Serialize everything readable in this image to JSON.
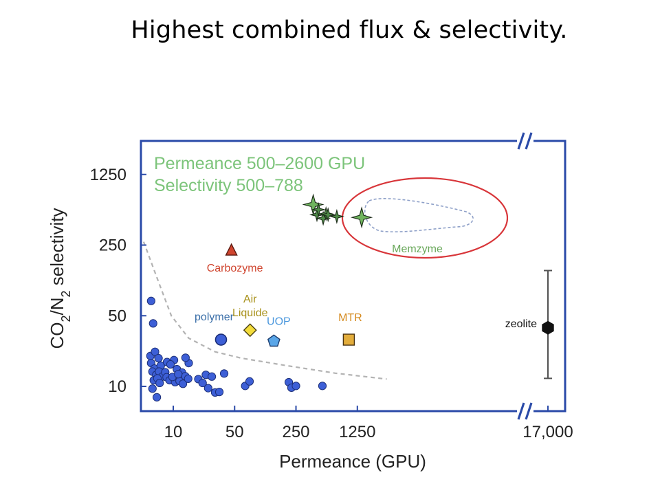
{
  "slide": {
    "title": "Highest combined flux & selectivity."
  },
  "colors": {
    "frame": "#2a4aa8",
    "polymer_points": "#3d5fd6",
    "carbozyme": "#d0452f",
    "air_liquide": "#f3dc3c",
    "air_liquide_label": "#a8911a",
    "uop": "#5aa6e8",
    "uop_label": "#4a97dd",
    "mtr": "#e3ad3c",
    "mtr_label": "#d58a1e",
    "memzyme": "#6aa85b",
    "memzyme_circle": "#d8363a",
    "note": "#7cc47a",
    "trend": "#b3b3b3",
    "zeolite": "#111111"
  },
  "chart_data": {
    "type": "scatter",
    "title": "",
    "xlabel": "Permeance (GPU)",
    "ylabel": "CO2/N2 selectivity",
    "x_scale": "log",
    "y_scale": "log",
    "x_break": true,
    "y_break": true,
    "x_ticks": [
      "10",
      "50",
      "250",
      "1250",
      "17,000"
    ],
    "y_ticks": [
      "1250",
      "250",
      "50",
      "10"
    ],
    "note_lines": [
      "Permeance 500–2600 GPU",
      "Selectivity 500–788"
    ],
    "polymer_points": [
      [
        5.6,
        70
      ],
      [
        5.8,
        9.5
      ],
      [
        6.5,
        7.8
      ],
      [
        5.5,
        20
      ],
      [
        5.9,
        42
      ],
      [
        6.2,
        22
      ],
      [
        5.6,
        17
      ],
      [
        6.1,
        15
      ],
      [
        6.8,
        19
      ],
      [
        7.2,
        16
      ],
      [
        5.8,
        14
      ],
      [
        6.4,
        13
      ],
      [
        6.9,
        14
      ],
      [
        7.5,
        12.5
      ],
      [
        8.1,
        13.8
      ],
      [
        6.0,
        11.5
      ],
      [
        6.6,
        12
      ],
      [
        7.0,
        10.8
      ],
      [
        8.4,
        12.3
      ],
      [
        9.1,
        11.5
      ],
      [
        10.5,
        11.0
      ],
      [
        11.8,
        11.3
      ],
      [
        9.8,
        12.4
      ],
      [
        11.0,
        14.8
      ],
      [
        12.6,
        13.7
      ],
      [
        13.7,
        12.6
      ],
      [
        15.0,
        17.0
      ],
      [
        8.5,
        17.4
      ],
      [
        10.2,
        18.2
      ],
      [
        12.9,
        10.6
      ],
      [
        14.8,
        11.9
      ],
      [
        9.3,
        16.5
      ],
      [
        11.4,
        13.2
      ],
      [
        13.8,
        19.2
      ],
      [
        19.3,
        11.8
      ],
      [
        21.6,
        10.8
      ],
      [
        23.5,
        13.0
      ],
      [
        25.0,
        9.6
      ],
      [
        27.5,
        12.5
      ],
      [
        30.0,
        8.7
      ],
      [
        33.5,
        8.8
      ],
      [
        38.0,
        13.4
      ],
      [
        66.0,
        10.1
      ],
      [
        74.0,
        11.2
      ],
      [
        207.0,
        11.0
      ],
      [
        222.0,
        9.7
      ],
      [
        250.0,
        10.1
      ],
      [
        500.0,
        10.1
      ]
    ],
    "trend_line": [
      [
        4.6,
        270
      ],
      [
        6.5,
        120
      ],
      [
        9.5,
        50
      ],
      [
        15,
        30
      ],
      [
        30,
        22
      ],
      [
        60,
        19
      ],
      [
        200,
        16
      ],
      [
        700,
        13.5
      ],
      [
        2700,
        11.8
      ]
    ],
    "labeled_points": [
      {
        "name": "polymer",
        "x": 35,
        "y": 29,
        "marker": "circle",
        "label_lines": [
          "polymer"
        ]
      },
      {
        "name": "Carbozyme",
        "x": 46,
        "y": 222,
        "marker": "triangle",
        "label_lines": [
          "Carbozyme"
        ]
      },
      {
        "name": "Air Liquide",
        "x": 75,
        "y": 36,
        "marker": "diamond",
        "label_lines": [
          "Air",
          "Liquide"
        ]
      },
      {
        "name": "UOP",
        "x": 140,
        "y": 28,
        "marker": "pentagon",
        "label_lines": [
          "UOP"
        ]
      },
      {
        "name": "MTR",
        "x": 1000,
        "y": 29,
        "marker": "square",
        "label_lines": [
          "MTR"
        ]
      }
    ],
    "memzyme": {
      "label": "Memzyme",
      "points": [
        [
          393,
          630
        ],
        [
          433,
          500
        ],
        [
          451,
          560
        ],
        [
          510,
          460
        ],
        [
          550,
          510
        ],
        [
          580,
          500
        ],
        [
          730,
          480
        ],
        [
          1400,
          470
        ]
      ]
    },
    "zeolite": {
      "label": "zeolite",
      "x": 17000,
      "y": 38,
      "y_low": 12,
      "y_high": 140
    }
  }
}
